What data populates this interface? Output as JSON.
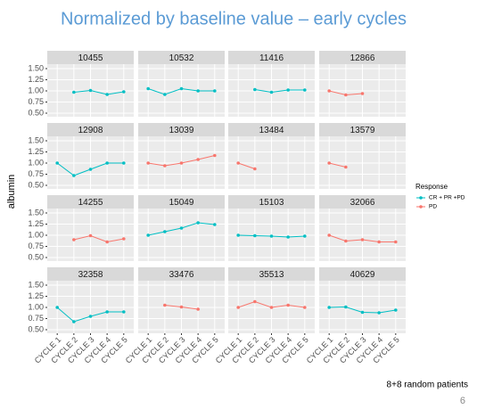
{
  "chart_data": {
    "type": "line",
    "title": "Normalized by baseline value – early cycles",
    "ylabel": "albumin",
    "categories": [
      "CYCLE 1",
      "CYCLE 2",
      "CYCLE 3",
      "CYCLE 4",
      "CYCLE 5"
    ],
    "ylim": [
      0.42,
      1.6
    ],
    "yticks": [
      {
        "value": 0.5,
        "label": "0.50"
      },
      {
        "value": 0.75,
        "label": "0.75"
      },
      {
        "value": 1.0,
        "label": "1.00"
      },
      {
        "value": 1.25,
        "label": "1.25"
      },
      {
        "value": 1.5,
        "label": "1.50"
      }
    ],
    "grid": true,
    "legend": {
      "title": "Response",
      "position": "right",
      "entries": [
        {
          "name": "CR + PR +PD",
          "color": "#00BFC4"
        },
        {
          "name": "PD",
          "color": "#F8766D"
        }
      ]
    },
    "facets": [
      {
        "title": "10455",
        "color": "#00BFC4",
        "values": [
          null,
          0.97,
          1.01,
          0.92,
          0.98
        ]
      },
      {
        "title": "10532",
        "color": "#00BFC4",
        "values": [
          1.05,
          0.92,
          1.05,
          1.0,
          1.0
        ]
      },
      {
        "title": "11416",
        "color": "#00BFC4",
        "values": [
          null,
          1.03,
          0.97,
          1.02,
          1.02
        ]
      },
      {
        "title": "12866",
        "color": "#F8766D",
        "values": [
          1.0,
          0.91,
          0.94,
          null,
          null
        ]
      },
      {
        "title": "12908",
        "color": "#00BFC4",
        "values": [
          1.0,
          0.72,
          0.86,
          1.0,
          1.0
        ]
      },
      {
        "title": "13039",
        "color": "#F8766D",
        "values": [
          1.0,
          0.94,
          1.0,
          1.08,
          1.17
        ]
      },
      {
        "title": "13484",
        "color": "#F8766D",
        "values": [
          1.0,
          0.87,
          null,
          null,
          null
        ]
      },
      {
        "title": "13579",
        "color": "#F8766D",
        "values": [
          1.0,
          0.91,
          null,
          null,
          null
        ]
      },
      {
        "title": "14255",
        "color": "#F8766D",
        "values": [
          null,
          0.9,
          0.99,
          0.85,
          0.92
        ]
      },
      {
        "title": "15049",
        "color": "#00BFC4",
        "values": [
          1.0,
          1.08,
          1.16,
          1.28,
          1.24
        ]
      },
      {
        "title": "15103",
        "color": "#00BFC4",
        "values": [
          1.0,
          0.99,
          0.98,
          0.96,
          0.98
        ]
      },
      {
        "title": "32066",
        "color": "#F8766D",
        "values": [
          1.0,
          0.87,
          0.9,
          0.85,
          0.85
        ]
      },
      {
        "title": "32358",
        "color": "#00BFC4",
        "values": [
          1.0,
          0.68,
          0.8,
          0.9,
          0.9
        ]
      },
      {
        "title": "33476",
        "color": "#F8766D",
        "values": [
          null,
          1.05,
          1.01,
          0.96,
          null
        ]
      },
      {
        "title": "35513",
        "color": "#F8766D",
        "values": [
          1.0,
          1.13,
          1.0,
          1.05,
          1.0
        ]
      },
      {
        "title": "40629",
        "color": "#00BFC4",
        "values": [
          1.0,
          1.01,
          0.89,
          0.88,
          0.94
        ]
      }
    ],
    "notes": [
      "8+8 random patients",
      "6"
    ]
  }
}
